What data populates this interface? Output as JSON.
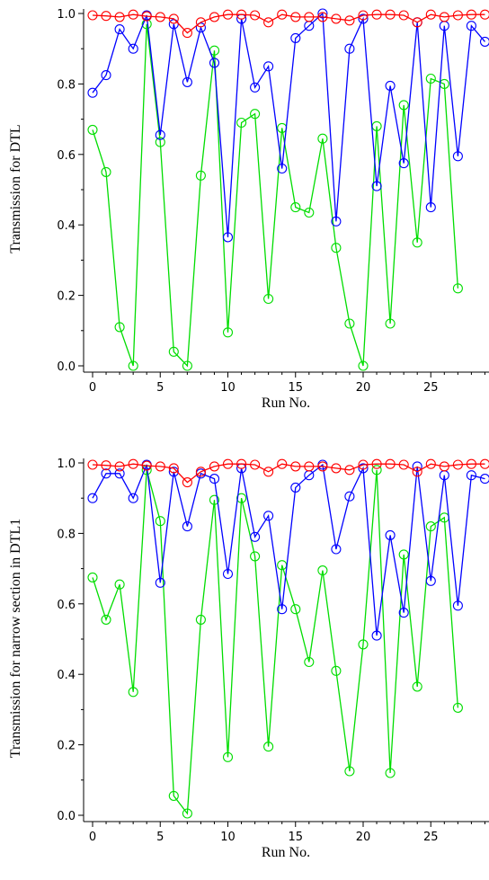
{
  "chart_data": [
    {
      "type": "line",
      "xlabel": "Run No.",
      "ylabel": "Transmission for DTL",
      "xlim": [
        -1,
        29
      ],
      "ylim": [
        -0.02,
        1.02
      ],
      "xticks": [
        0,
        5,
        10,
        15,
        20,
        25
      ],
      "yticks": [
        0.0,
        0.2,
        0.4,
        0.6,
        0.8,
        1.0
      ],
      "grid": false,
      "markers": "open-circle",
      "x": [
        0,
        1,
        2,
        3,
        4,
        5,
        6,
        7,
        8,
        9,
        10,
        11,
        12,
        13,
        14,
        15,
        16,
        17,
        18,
        19,
        20,
        21,
        22,
        23,
        24,
        25,
        26,
        27,
        28,
        29
      ],
      "series": [
        {
          "color": "#ff0000",
          "values": [
            0.995,
            0.993,
            0.99,
            0.997,
            0.992,
            0.99,
            0.985,
            0.945,
            0.975,
            0.99,
            0.997,
            0.997,
            0.995,
            0.975,
            0.997,
            0.99,
            0.99,
            0.99,
            0.985,
            0.98,
            0.995,
            0.997,
            0.997,
            0.995,
            0.975,
            0.997,
            0.99,
            0.995,
            0.997,
            0.997
          ]
        },
        {
          "color": "#0000ff",
          "values": [
            0.775,
            0.825,
            0.955,
            0.9,
            0.995,
            0.655,
            0.97,
            0.805,
            0.96,
            0.86,
            0.365,
            0.985,
            0.79,
            0.85,
            0.56,
            0.93,
            0.965,
            1.0,
            0.41,
            0.9,
            0.985,
            0.51,
            0.795,
            0.575,
            0.975,
            0.45,
            0.965,
            0.595,
            0.965,
            0.92
          ]
        },
        {
          "color": "#00dd00",
          "values": [
            0.67,
            0.55,
            0.11,
            0.0,
            0.97,
            0.635,
            0.04,
            0.0,
            0.54,
            0.895,
            0.095,
            0.69,
            0.715,
            0.19,
            0.675,
            0.45,
            0.435,
            0.645,
            0.335,
            0.12,
            0.0,
            0.68,
            0.12,
            0.74,
            0.35,
            0.815,
            0.8,
            0.22,
            null,
            null
          ]
        }
      ]
    },
    {
      "type": "line",
      "xlabel": "Run No.",
      "ylabel": "Transmission for narrow section in DTL1",
      "xlim": [
        -1,
        29
      ],
      "ylim": [
        -0.02,
        1.02
      ],
      "xticks": [
        0,
        5,
        10,
        15,
        20,
        25
      ],
      "yticks": [
        0.0,
        0.2,
        0.4,
        0.6,
        0.8,
        1.0
      ],
      "grid": false,
      "markers": "open-circle",
      "x": [
        0,
        1,
        2,
        3,
        4,
        5,
        6,
        7,
        8,
        9,
        10,
        11,
        12,
        13,
        14,
        15,
        16,
        17,
        18,
        19,
        20,
        21,
        22,
        23,
        24,
        25,
        26,
        27,
        28,
        29
      ],
      "series": [
        {
          "color": "#ff0000",
          "values": [
            0.995,
            0.993,
            0.99,
            0.997,
            0.992,
            0.99,
            0.985,
            0.945,
            0.975,
            0.99,
            0.997,
            0.997,
            0.995,
            0.975,
            0.997,
            0.99,
            0.99,
            0.99,
            0.985,
            0.98,
            0.995,
            0.997,
            0.997,
            0.995,
            0.975,
            0.997,
            0.99,
            0.995,
            0.997,
            0.997
          ]
        },
        {
          "color": "#0000ff",
          "values": [
            0.9,
            0.97,
            0.97,
            0.9,
            0.995,
            0.66,
            0.975,
            0.82,
            0.97,
            0.955,
            0.685,
            0.985,
            0.79,
            0.85,
            0.585,
            0.93,
            0.965,
            0.995,
            0.755,
            0.905,
            0.985,
            0.51,
            0.795,
            0.575,
            0.99,
            0.665,
            0.965,
            0.595,
            0.965,
            0.955
          ]
        },
        {
          "color": "#00dd00",
          "values": [
            0.675,
            0.555,
            0.655,
            0.35,
            0.98,
            0.835,
            0.055,
            0.005,
            0.555,
            0.895,
            0.165,
            0.9,
            0.735,
            0.195,
            0.71,
            0.585,
            0.435,
            0.695,
            0.41,
            0.125,
            0.485,
            0.98,
            0.12,
            0.74,
            0.365,
            0.82,
            0.845,
            0.305,
            null,
            null
          ]
        }
      ]
    }
  ]
}
